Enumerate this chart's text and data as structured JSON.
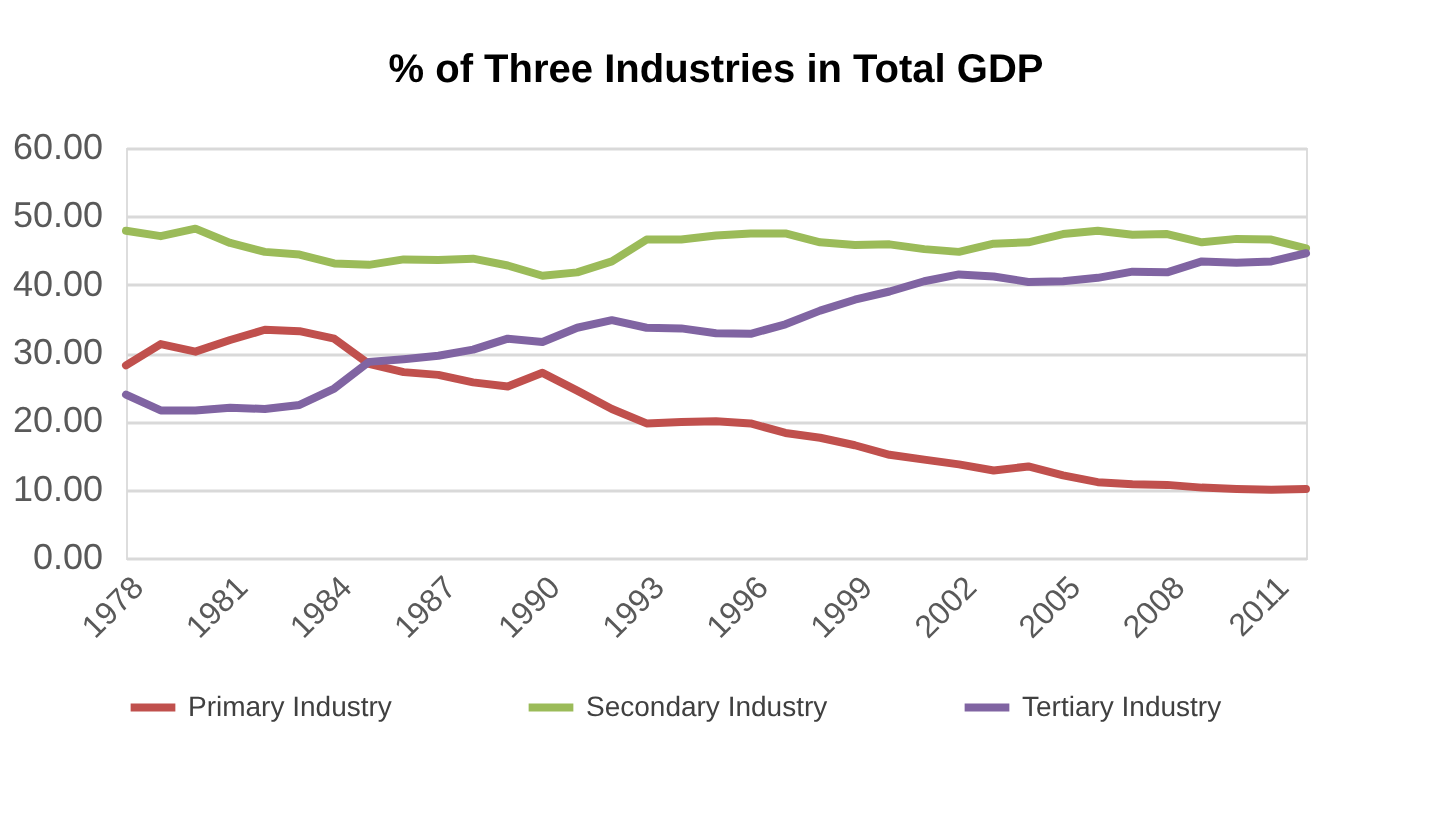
{
  "chart_data": {
    "type": "line",
    "title": "% of Three Industries in Total GDP",
    "x": [
      1978,
      1979,
      1980,
      1981,
      1982,
      1983,
      1984,
      1985,
      1986,
      1987,
      1988,
      1989,
      1990,
      1991,
      1992,
      1993,
      1994,
      1995,
      1996,
      1997,
      1998,
      1999,
      2000,
      2001,
      2002,
      2003,
      2004,
      2005,
      2006,
      2007,
      2008,
      2009,
      2010,
      2011,
      2012
    ],
    "xlim": [
      1978,
      2012
    ],
    "xticks": [
      1978,
      1981,
      1984,
      1987,
      1990,
      1993,
      1996,
      1999,
      2002,
      2005,
      2008,
      2011
    ],
    "ylim": [
      0,
      60
    ],
    "yticks": [
      {
        "value": 0,
        "label": "0.00"
      },
      {
        "value": 10,
        "label": "10.00"
      },
      {
        "value": 20,
        "label": "20.00"
      },
      {
        "value": 30,
        "label": "30.00"
      },
      {
        "value": 40,
        "label": "40.00"
      },
      {
        "value": 50,
        "label": "50.00"
      },
      {
        "value": 60,
        "label": "60.00"
      }
    ],
    "grid": "y",
    "legend": "bottom",
    "marker": "none",
    "line_style": "solid",
    "series": [
      {
        "name": "Primary Industry",
        "color": "#c0504d",
        "values": [
          28.2,
          31.3,
          30.2,
          31.9,
          33.4,
          33.2,
          32.1,
          28.4,
          27.2,
          26.8,
          25.7,
          25.1,
          27.1,
          24.5,
          21.8,
          19.7,
          19.9,
          20.0,
          19.7,
          18.3,
          17.6,
          16.5,
          15.1,
          14.4,
          13.7,
          12.8,
          13.4,
          12.1,
          11.1,
          10.8,
          10.7,
          10.3,
          10.1,
          10.0,
          10.1
        ]
      },
      {
        "name": "Secondary Industry",
        "color": "#9bbb59",
        "values": [
          47.9,
          47.1,
          48.2,
          46.1,
          44.8,
          44.4,
          43.1,
          42.9,
          43.7,
          43.6,
          43.8,
          42.8,
          41.3,
          41.8,
          43.4,
          46.6,
          46.6,
          47.2,
          47.5,
          47.5,
          46.2,
          45.8,
          45.9,
          45.2,
          44.8,
          46.0,
          46.2,
          47.4,
          47.9,
          47.3,
          47.4,
          46.2,
          46.7,
          46.6,
          45.3
        ]
      },
      {
        "name": "Tertiary Industry",
        "color": "#8064a2",
        "values": [
          23.9,
          21.6,
          21.6,
          22.0,
          21.8,
          22.4,
          24.8,
          28.7,
          29.1,
          29.6,
          30.5,
          32.1,
          31.6,
          33.7,
          34.8,
          33.7,
          33.6,
          32.9,
          32.8,
          34.2,
          36.2,
          37.8,
          39.0,
          40.5,
          41.5,
          41.2,
          40.4,
          40.5,
          41.0,
          41.9,
          41.8,
          43.4,
          43.2,
          43.4,
          44.6
        ]
      }
    ]
  }
}
